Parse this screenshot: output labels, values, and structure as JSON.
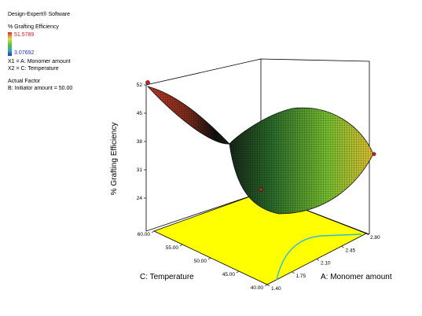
{
  "software": "Design-Expert® Software",
  "response_title": "% Grafting Efficiency",
  "colorbar": {
    "max": "51.5789",
    "min": "3.07692",
    "max_color": "#d02020",
    "min_color": "#2030c0"
  },
  "factors": [
    "X1 = A: Monomer amount",
    "X2 = C: Temperature"
  ],
  "actual_factor_title": "Actual Factor",
  "actual_factor_value": "B: Initiator amount = 50.00",
  "chart_data": {
    "type": "surface",
    "title": "",
    "zlabel": "% Grafting Efficiency",
    "xlabel": "A: Monomer amount",
    "ylabel": "C: Temperature",
    "z_ticks": [
      "52",
      "45",
      "38",
      "31",
      "24"
    ],
    "x_ticks": [
      "1.40",
      "1.75",
      "2.10",
      "2.45",
      "2.80"
    ],
    "y_ticks": [
      "40.00",
      "45.00",
      "50.00",
      "55.00",
      "60.00"
    ],
    "x_range": [
      1.4,
      2.8
    ],
    "y_range": [
      40,
      60
    ],
    "z_range": [
      17,
      52
    ],
    "surface_corners": [
      {
        "monomer": 1.4,
        "temperature": 60,
        "grafting": 52
      },
      {
        "monomer": 2.8,
        "temperature": 60,
        "grafting": 36
      },
      {
        "monomer": 2.8,
        "temperature": 40,
        "grafting": 18
      },
      {
        "monomer": 1.4,
        "temperature": 40,
        "grafting": 17
      }
    ],
    "floor_color": "#ffff00",
    "contour_color": "#30b8e0",
    "design_point_color": "#d02020"
  }
}
